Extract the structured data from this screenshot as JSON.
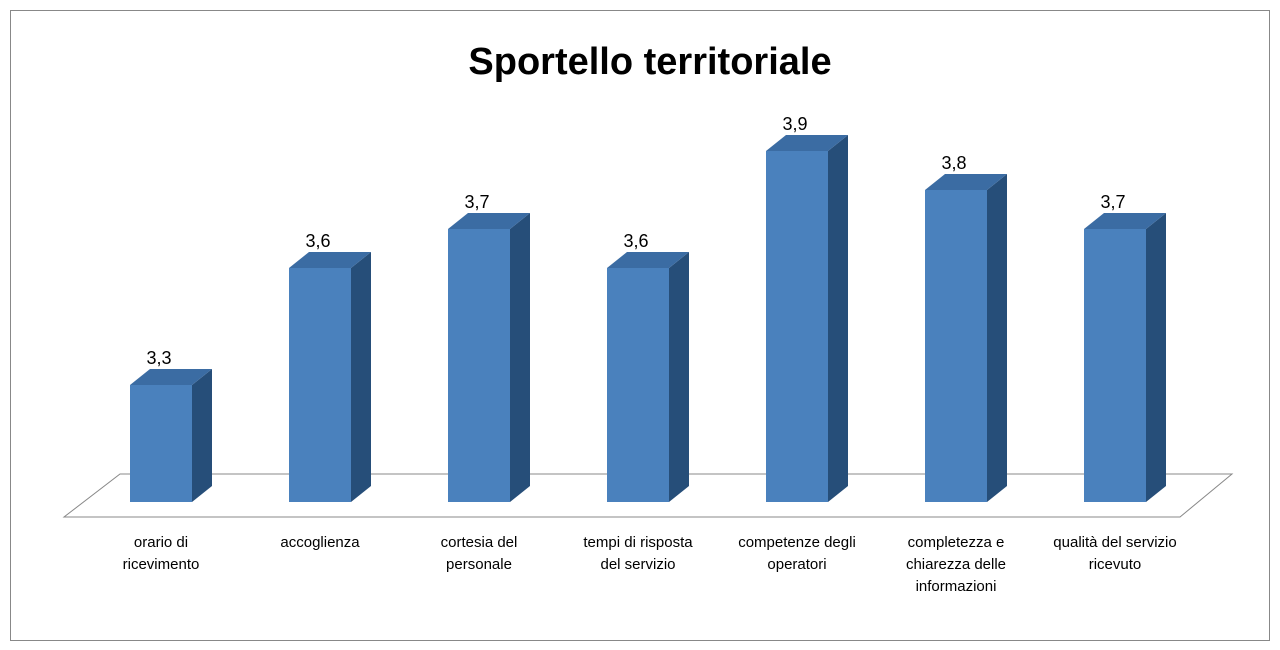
{
  "chart_data": {
    "type": "bar3d",
    "title": "Sportello territoriale",
    "categories": [
      "orario di ricevimento",
      "accoglienza",
      "cortesia del personale",
      "tempi di risposta del servizio",
      "competenze degli operatori",
      "completezza e chiarezza delle informazioni",
      "qualità del servizio ricevuto"
    ],
    "values": [
      3.3,
      3.6,
      3.7,
      3.6,
      3.9,
      3.8,
      3.7
    ],
    "value_labels": [
      "3,3",
      "3,6",
      "3,7",
      "3,6",
      "3,9",
      "3,8",
      "3,7"
    ],
    "color": "#4a81bd",
    "ylim": [
      3,
      4
    ]
  }
}
